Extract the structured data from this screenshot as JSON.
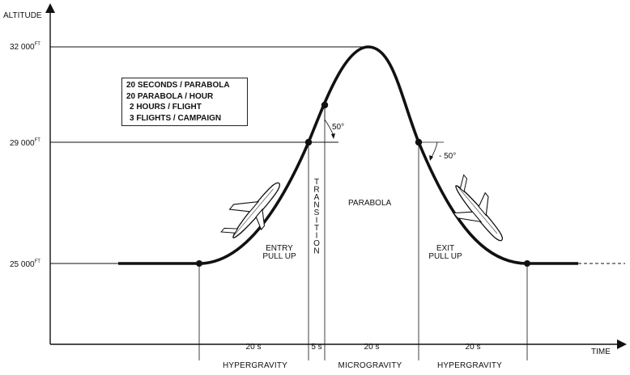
{
  "axes": {
    "y_label": "ALTITUDE",
    "x_label": "TIME",
    "y_ticks": [
      {
        "value": "32 000",
        "unit": "FT"
      },
      {
        "value": "29 000",
        "unit": "FT"
      },
      {
        "value": "25 000",
        "unit": "FT"
      }
    ]
  },
  "info_box": {
    "lines": [
      "20 SECONDS / PARABOLA",
      "20 PARABOLA / HOUR",
      "2 HOURS / FLIGHT",
      "3 FLIGHTS / CAMPAIGN"
    ]
  },
  "annotations": {
    "entry": "ENTRY\nPULL UP",
    "exit": "EXIT\nPULL UP",
    "transition": "TRANSITION",
    "parabola": "PARABOLA",
    "angle_up": "50°",
    "angle_down": "- 50°"
  },
  "durations": [
    "20 s",
    "5 s",
    "20 s",
    "20 s"
  ],
  "phases": [
    "HYPERGRAVITY",
    "MICROGRAVITY",
    "HYPERGRAVITY"
  ],
  "colors": {
    "ink": "#111111",
    "background": "#ffffff"
  }
}
